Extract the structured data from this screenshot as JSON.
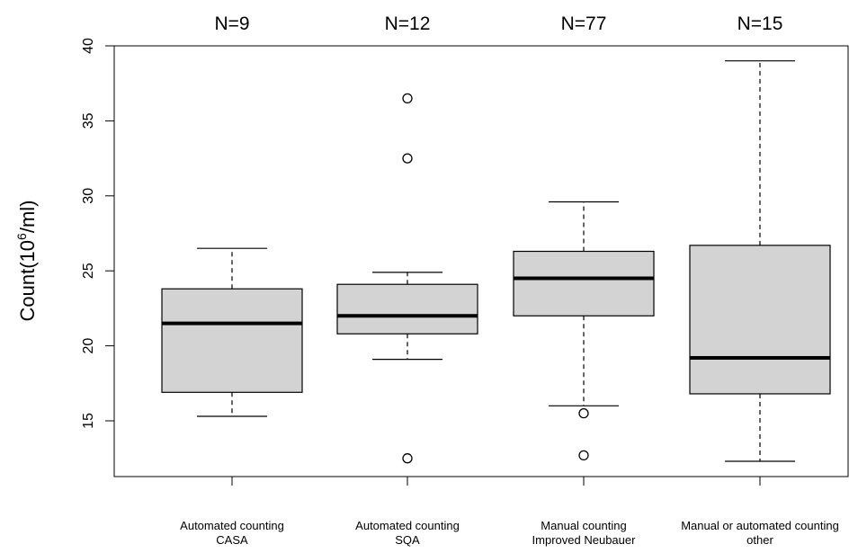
{
  "chart_data": {
    "type": "boxplot",
    "title": "",
    "ylabel": "Count(10⁶/ml)",
    "ylabel_parts": {
      "base": "Count(10",
      "sup": "6",
      "tail": "/ml)"
    },
    "xlabel": "",
    "ylim": [
      11.5,
      40
    ],
    "yticks": [
      15,
      20,
      25,
      30,
      35,
      40
    ],
    "grid": false,
    "box_fill": "#d3d3d3",
    "line_color": "#000000",
    "groups": [
      {
        "label_line1": "Automated counting",
        "label_line2": "CASA",
        "n_label": "N=9",
        "whisker_low": 15.3,
        "q1": 16.9,
        "median": 21.5,
        "q3": 23.8,
        "whisker_high": 26.5,
        "outliers": []
      },
      {
        "label_line1": "Automated counting",
        "label_line2": "SQA",
        "n_label": "N=12",
        "whisker_low": 19.1,
        "q1": 20.8,
        "median": 22.0,
        "q3": 24.1,
        "whisker_high": 24.9,
        "outliers": [
          36.5,
          32.5,
          12.5
        ]
      },
      {
        "label_line1": "Manual counting",
        "label_line2": "Improved Neubauer",
        "n_label": "N=77",
        "whisker_low": 16.0,
        "q1": 22.0,
        "median": 24.5,
        "q3": 26.3,
        "whisker_high": 29.6,
        "outliers": [
          15.5,
          12.7
        ]
      },
      {
        "label_line1": "Manual or automated counting",
        "label_line2": "other",
        "n_label": "N=15",
        "whisker_low": 12.3,
        "q1": 16.8,
        "median": 19.2,
        "q3": 26.7,
        "whisker_high": 39.0,
        "outliers": []
      }
    ]
  }
}
